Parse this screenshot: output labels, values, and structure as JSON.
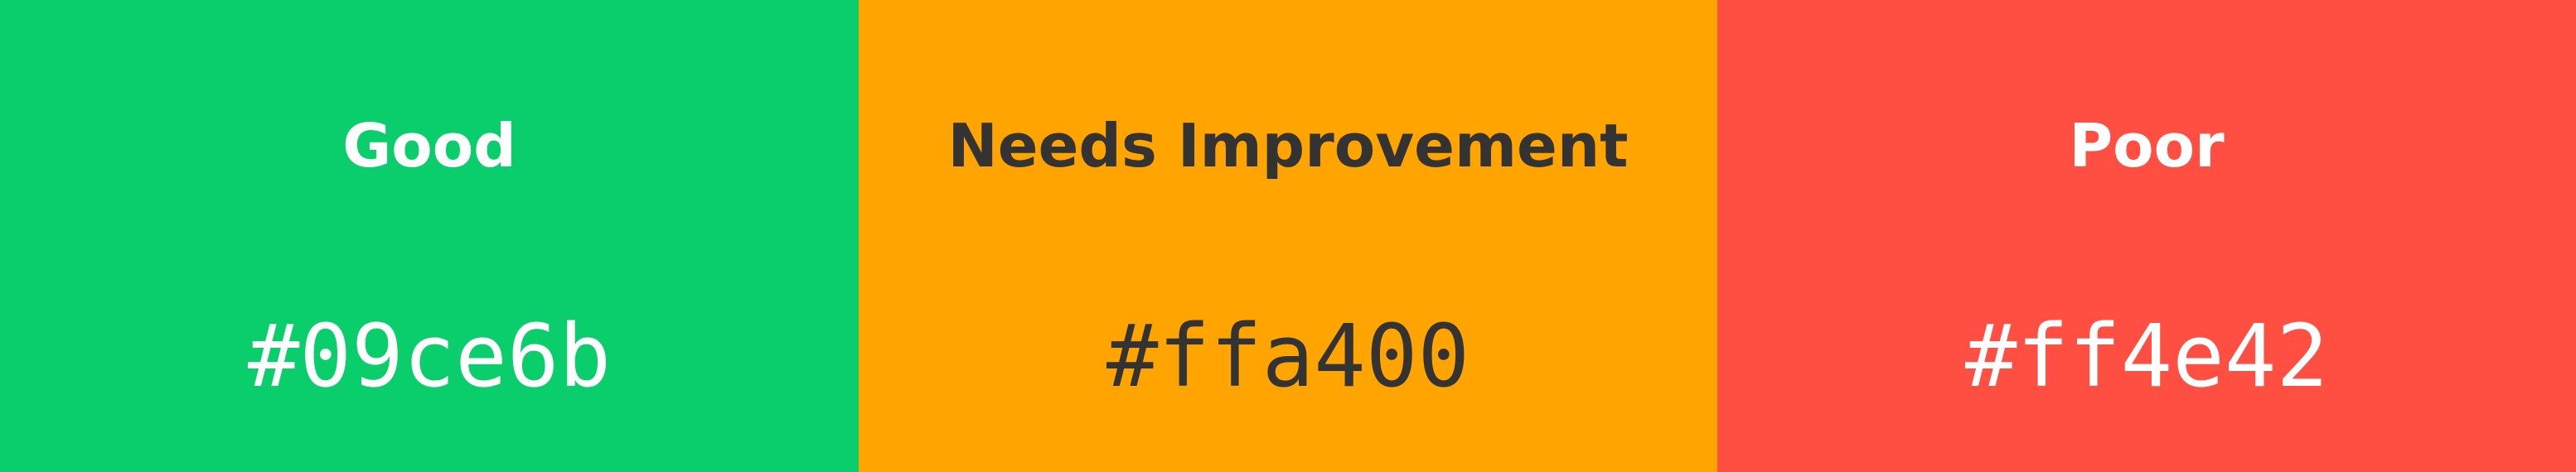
{
  "swatches": [
    {
      "label": "Good",
      "hex": "#09ce6b",
      "background": "#09ce6b",
      "text_color": "#ffffff"
    },
    {
      "label": "Needs Improvement",
      "hex": "#ffa400",
      "background": "#ffa400",
      "text_color": "#333333"
    },
    {
      "label": "Poor",
      "hex": "#ff4e42",
      "background": "#ff4e42",
      "text_color": "#ffffff"
    }
  ]
}
